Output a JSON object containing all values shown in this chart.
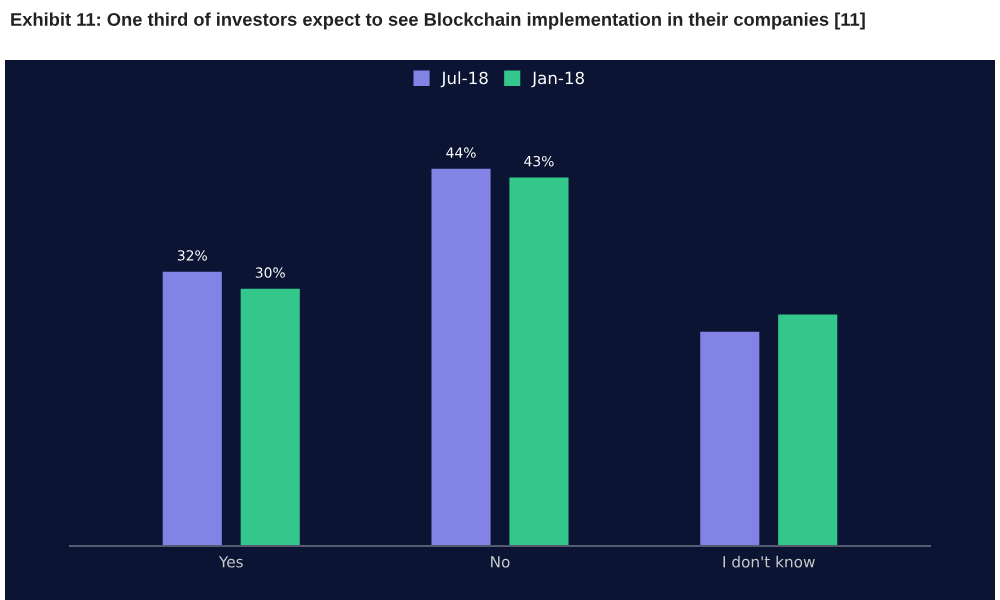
{
  "chart_data": {
    "type": "bar",
    "title": "Exhibit 11: One third of investors expect to see Blockchain implementation in their companies [11]",
    "categories": [
      "Yes",
      "No",
      "I don't know"
    ],
    "series": [
      {
        "name": "Jul-18",
        "color": "#8383e6",
        "values": [
          32,
          44,
          25
        ],
        "value_labels": [
          "32%",
          "44%",
          null
        ]
      },
      {
        "name": "Jan-18",
        "color": "#33c78c",
        "values": [
          30,
          43,
          27
        ],
        "value_labels": [
          "30%",
          "43%",
          null
        ]
      }
    ],
    "tick_labels": "x",
    "legend": "top",
    "grid": false
  }
}
